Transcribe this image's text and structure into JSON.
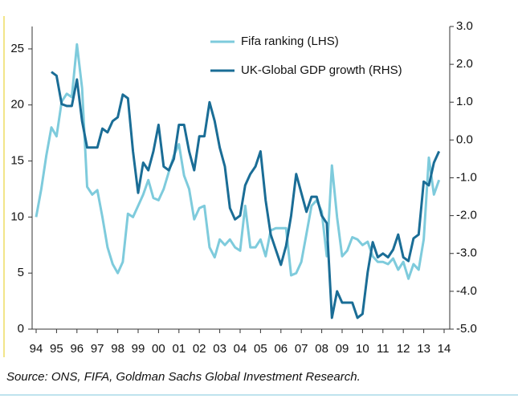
{
  "chart_data": {
    "type": "line",
    "source": "Source: ONS, FIFA, Goldman Sachs Global Investment Research.",
    "xlim": [
      1994,
      2014
    ],
    "xticks": [
      {
        "value": 1994,
        "label": "94"
      },
      {
        "value": 1995,
        "label": "95"
      },
      {
        "value": 1996,
        "label": "96"
      },
      {
        "value": 1997,
        "label": "97"
      },
      {
        "value": 1998,
        "label": "98"
      },
      {
        "value": 1999,
        "label": "99"
      },
      {
        "value": 2000,
        "label": "00"
      },
      {
        "value": 2001,
        "label": "01"
      },
      {
        "value": 2002,
        "label": "02"
      },
      {
        "value": 2003,
        "label": "03"
      },
      {
        "value": 2004,
        "label": "04"
      },
      {
        "value": 2005,
        "label": "05"
      },
      {
        "value": 2006,
        "label": "06"
      },
      {
        "value": 2007,
        "label": "07"
      },
      {
        "value": 2008,
        "label": "08"
      },
      {
        "value": 2009,
        "label": "09"
      },
      {
        "value": 2010,
        "label": "10"
      },
      {
        "value": 2011,
        "label": "11"
      },
      {
        "value": 2012,
        "label": "12"
      },
      {
        "value": 2013,
        "label": "13"
      },
      {
        "value": 2014,
        "label": "14"
      }
    ],
    "ylim": [
      0,
      27
    ],
    "yticks": [
      0,
      5,
      10,
      15,
      20,
      25
    ],
    "y2lim": [
      -5,
      3
    ],
    "y2ticks": [
      {
        "value": -5,
        "label": "-5.0"
      },
      {
        "value": -4,
        "label": "-4.0"
      },
      {
        "value": -3,
        "label": "-3.0"
      },
      {
        "value": -2,
        "label": "-2.0"
      },
      {
        "value": -1,
        "label": "-1.0"
      },
      {
        "value": 0,
        "label": "0.0"
      },
      {
        "value": 1,
        "label": "1.0"
      },
      {
        "value": 2,
        "label": "2.0"
      },
      {
        "value": 3,
        "label": "3.0"
      }
    ],
    "series": [
      {
        "name": "Fifa ranking (LHS)",
        "color": "#7ecbdc",
        "axis": "y",
        "x": [
          1994,
          1994.25,
          1994.5,
          1994.75,
          1995,
          1995.25,
          1995.5,
          1995.75,
          1996,
          1996.25,
          1996.5,
          1996.75,
          1997,
          1997.25,
          1997.5,
          1997.75,
          1998,
          1998.25,
          1998.5,
          1998.75,
          1999,
          1999.25,
          1999.5,
          1999.75,
          2000,
          2000.25,
          2000.5,
          2000.75,
          2001,
          2001.25,
          2001.5,
          2001.75,
          2002,
          2002.25,
          2002.5,
          2002.75,
          2003,
          2003.25,
          2003.5,
          2003.75,
          2004,
          2004.25,
          2004.5,
          2004.75,
          2005,
          2005.25,
          2005.5,
          2005.75,
          2006,
          2006.25,
          2006.5,
          2006.75,
          2007,
          2007.25,
          2007.5,
          2007.75,
          2008,
          2008.25,
          2008.5,
          2008.75,
          2009,
          2009.25,
          2009.5,
          2009.75,
          2010,
          2010.25,
          2010.5,
          2010.75,
          2011,
          2011.25,
          2011.5,
          2011.75,
          2012,
          2012.25,
          2012.5,
          2012.75,
          2013,
          2013.25,
          2013.5,
          2013.75
        ],
        "values": [
          10,
          12.5,
          15.5,
          18,
          17.2,
          20.3,
          21,
          20.7,
          25.4,
          21.5,
          12.7,
          12,
          12.4,
          10,
          7.3,
          5.8,
          5,
          6,
          10.3,
          10,
          11,
          12,
          13.3,
          11.7,
          11.5,
          12.5,
          14,
          15.5,
          16.5,
          13.7,
          12.5,
          9.8,
          10.8,
          11,
          7.3,
          6.4,
          8,
          7.5,
          8,
          7.3,
          7,
          11,
          7.3,
          7.3,
          8,
          6.5,
          8.8,
          9,
          9,
          9,
          4.8,
          5,
          6,
          8.5,
          11,
          11.5,
          10.5,
          6.5,
          14.6,
          10,
          6.5,
          7,
          8.2,
          8,
          7.5,
          7.8,
          6.5,
          6,
          6,
          5.8,
          6.3,
          5.3,
          6,
          4.5,
          5.8,
          5.3,
          8,
          15.3,
          12,
          13.3
        ]
      },
      {
        "name": "UK-Global GDP growth (RHS)",
        "color": "#1a6d96",
        "axis": "y2",
        "x": [
          1994.75,
          1995,
          1995.25,
          1995.5,
          1995.75,
          1996,
          1996.25,
          1996.5,
          1996.75,
          1997,
          1997.25,
          1997.5,
          1997.75,
          1998,
          1998.25,
          1998.5,
          1998.75,
          1999,
          1999.25,
          1999.5,
          1999.75,
          2000,
          2000.25,
          2000.5,
          2000.75,
          2001,
          2001.25,
          2001.5,
          2001.75,
          2002,
          2002.25,
          2002.5,
          2002.75,
          2003,
          2003.25,
          2003.5,
          2003.75,
          2004,
          2004.25,
          2004.5,
          2004.75,
          2005,
          2005.25,
          2005.5,
          2005.75,
          2006,
          2006.25,
          2006.5,
          2006.75,
          2007,
          2007.25,
          2007.5,
          2007.75,
          2008,
          2008.25,
          2008.5,
          2008.75,
          2009,
          2009.25,
          2009.5,
          2009.75,
          2010,
          2010.25,
          2010.5,
          2010.75,
          2011,
          2011.25,
          2011.5,
          2011.75,
          2012,
          2012.25,
          2012.5,
          2012.75,
          2013,
          2013.25,
          2013.5,
          2013.75
        ],
        "values": [
          1.8,
          1.7,
          0.95,
          0.9,
          0.9,
          1.6,
          0.5,
          -0.2,
          -0.2,
          -0.2,
          0.3,
          0.2,
          0.5,
          0.6,
          1.2,
          1.1,
          -0.3,
          -1.4,
          -0.6,
          -0.8,
          -0.3,
          0.4,
          -0.7,
          -0.8,
          -0.5,
          0.4,
          0.4,
          -0.3,
          -0.8,
          0.1,
          0.1,
          1.0,
          0.5,
          -0.2,
          -0.7,
          -1.8,
          -2.1,
          -2.0,
          -1.2,
          -0.9,
          -0.7,
          -0.3,
          -1.6,
          -2.5,
          -2.9,
          -3.3,
          -2.8,
          -2.0,
          -0.9,
          -1.4,
          -1.9,
          -1.5,
          -1.5,
          -2.0,
          -2.2,
          -4.7,
          -4.0,
          -4.3,
          -4.3,
          -4.3,
          -4.7,
          -4.6,
          -3.5,
          -2.7,
          -3.1,
          -3.0,
          -3.1,
          -2.9,
          -2.5,
          -3.1,
          -3.2,
          -2.6,
          -2.5,
          -1.1,
          -1.2,
          -0.6,
          -0.3
        ]
      }
    ]
  }
}
